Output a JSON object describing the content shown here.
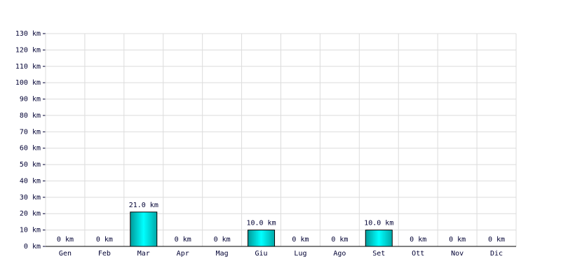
{
  "chart_data": {
    "type": "bar",
    "categories": [
      "Gen",
      "Feb",
      "Mar",
      "Apr",
      "Mag",
      "Giu",
      "Lug",
      "Ago",
      "Set",
      "Ott",
      "Nov",
      "Dic"
    ],
    "values": [
      0,
      0,
      21,
      0,
      0,
      10,
      0,
      0,
      10,
      0,
      0,
      0
    ],
    "value_labels": [
      "0 km",
      "0 km",
      "21.0 km",
      "0 km",
      "0 km",
      "10.0 km",
      "0 km",
      "0 km",
      "10.0 km",
      "0 km",
      "0 km",
      "0 km"
    ],
    "color": "#00e0e0",
    "ylim": [
      0,
      130
    ],
    "yticks": [
      {
        "value": 0,
        "label": "0 km"
      },
      {
        "value": 10,
        "label": "10 km"
      },
      {
        "value": 20,
        "label": "20 km"
      },
      {
        "value": 30,
        "label": "30 km"
      },
      {
        "value": 40,
        "label": "40 km"
      },
      {
        "value": 50,
        "label": "50 km"
      },
      {
        "value": 60,
        "label": "60 km"
      },
      {
        "value": 70,
        "label": "70 km"
      },
      {
        "value": 80,
        "label": "80 km"
      },
      {
        "value": 90,
        "label": "90 km"
      },
      {
        "value": 100,
        "label": "100 km"
      },
      {
        "value": 110,
        "label": "110 km"
      },
      {
        "value": 120,
        "label": "120 km"
      },
      {
        "value": 130,
        "label": "130 km"
      }
    ],
    "grid": true
  }
}
